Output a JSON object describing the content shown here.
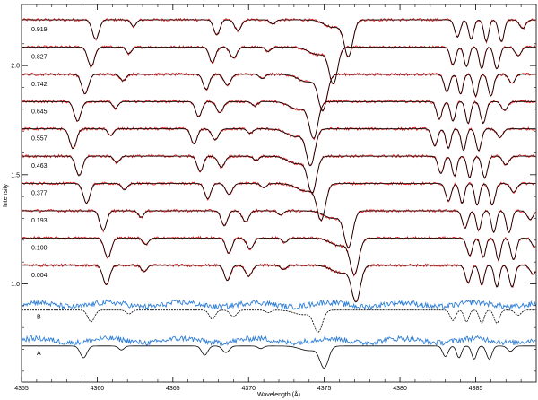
{
  "chart_data": {
    "type": "line",
    "title": "",
    "xlabel": "Wavelength (Å)",
    "ylabel": "Intensity",
    "xlim": [
      4355,
      4389
    ],
    "ylim": [
      0.55,
      2.28
    ],
    "x_ticks": [
      4355,
      4360,
      4365,
      4370,
      4375,
      4380,
      4385
    ],
    "y_ticks": [
      1.0,
      1.5,
      2.0
    ],
    "y_tick_labels": [
      "1.0",
      "1.5",
      "2.0"
    ],
    "colors": {
      "observed": "#e01a1a",
      "model": "#000000",
      "residual": "#2f7fd6",
      "axis": "#000000"
    },
    "spectra": [
      {
        "phase": "0.919",
        "offset": 2.21,
        "shift": 0.3,
        "broad_center": 4376.6
      },
      {
        "phase": "0.827",
        "offset": 2.085,
        "shift": 0.0,
        "broad_center": 4375.6
      },
      {
        "phase": "0.742",
        "offset": 1.96,
        "shift": -0.4,
        "broad_center": 4374.9
      },
      {
        "phase": "0.645",
        "offset": 1.835,
        "shift": -0.9,
        "broad_center": 4374.3
      },
      {
        "phase": "0.557",
        "offset": 1.71,
        "shift": -1.2,
        "broad_center": 4374.1
      },
      {
        "phase": "0.463",
        "offset": 1.585,
        "shift": -0.8,
        "broad_center": 4374.2
      },
      {
        "phase": "0.377",
        "offset": 1.46,
        "shift": -0.3,
        "broad_center": 4374.8
      },
      {
        "phase": "0.193",
        "offset": 1.335,
        "shift": 0.8,
        "broad_center": 4376.6
      },
      {
        "phase": "0.100",
        "offset": 1.21,
        "shift": 1.1,
        "broad_center": 4377.0
      },
      {
        "phase": "0.004",
        "offset": 1.085,
        "shift": 1.0,
        "broad_center": 4377.1
      }
    ],
    "components": [
      {
        "label": "B",
        "offset": 0.88
      },
      {
        "label": "A",
        "offset": 0.715
      }
    ]
  }
}
